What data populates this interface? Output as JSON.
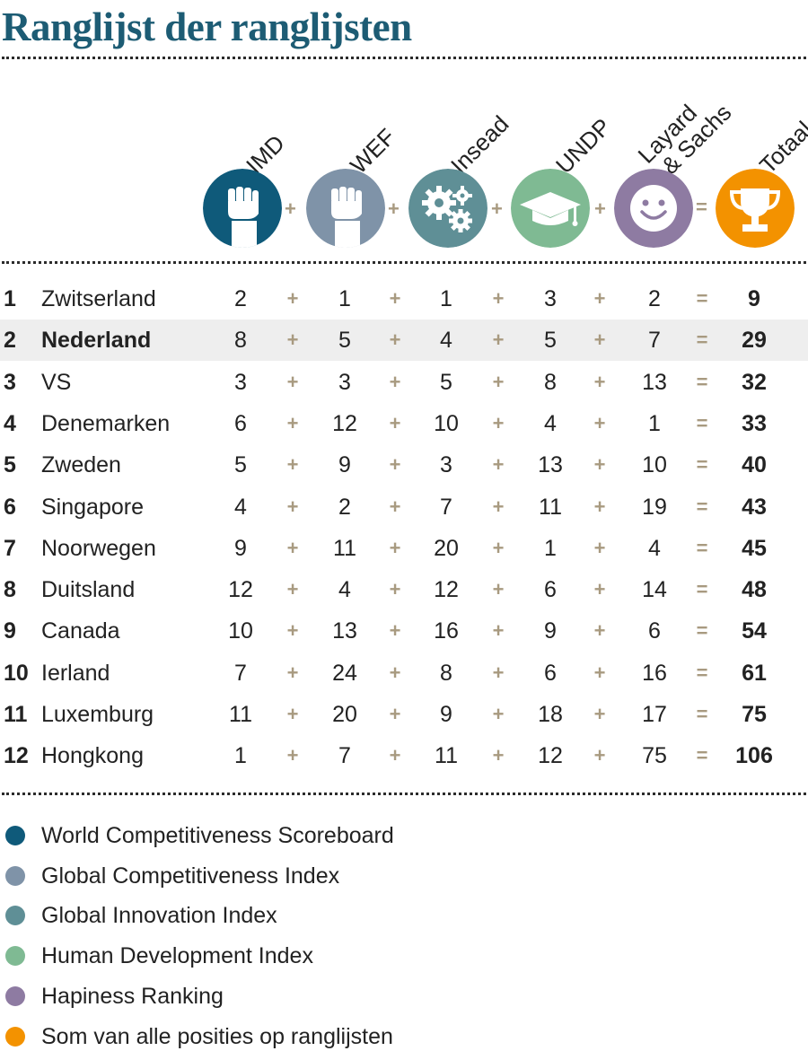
{
  "title": "Ranglijst der ranglijsten",
  "colors": {
    "imd": "#0f5a7a",
    "wef": "#7f93a8",
    "insead": "#5f8f96",
    "undp": "#7fba93",
    "happiness": "#8e7ba2",
    "total": "#f39200",
    "operator": "#a89a80"
  },
  "columns": [
    {
      "key": "imd",
      "label": "IMD",
      "icon": "fist-icon"
    },
    {
      "key": "wef",
      "label": "WEF",
      "icon": "fist-icon"
    },
    {
      "key": "insead",
      "label": "Insead",
      "icon": "gears-icon"
    },
    {
      "key": "undp",
      "label": "UNDP",
      "icon": "graduation-cap-icon"
    },
    {
      "key": "happiness",
      "label_lines": [
        "Layard",
        "& Sachs"
      ],
      "icon": "smiley-icon"
    },
    {
      "key": "total",
      "label": "Totaal",
      "icon": "trophy-icon"
    }
  ],
  "operators": {
    "plus": "+",
    "equals": "="
  },
  "chart_data": {
    "type": "table",
    "title": "Ranglijst der ranglijsten",
    "columns": [
      "IMD",
      "WEF",
      "Insead",
      "UNDP",
      "Layard & Sachs",
      "Totaal"
    ],
    "highlighted_row": "Nederland",
    "rows": [
      {
        "rank": "1",
        "country": "Zwitserland",
        "values": [
          2,
          1,
          1,
          3,
          2
        ],
        "total": 9
      },
      {
        "rank": "2",
        "country": "Nederland",
        "values": [
          8,
          5,
          4,
          5,
          7
        ],
        "total": 29
      },
      {
        "rank": "3",
        "country": "VS",
        "values": [
          3,
          3,
          5,
          8,
          13
        ],
        "total": 32
      },
      {
        "rank": "4",
        "country": "Denemarken",
        "values": [
          6,
          12,
          10,
          4,
          1
        ],
        "total": 33
      },
      {
        "rank": "5",
        "country": "Zweden",
        "values": [
          5,
          9,
          3,
          13,
          10
        ],
        "total": 40
      },
      {
        "rank": "6",
        "country": "Singapore",
        "values": [
          4,
          2,
          7,
          11,
          19
        ],
        "total": 43
      },
      {
        "rank": "7",
        "country": "Noorwegen",
        "values": [
          9,
          11,
          20,
          1,
          4
        ],
        "total": 45
      },
      {
        "rank": "8",
        "country": "Duitsland",
        "values": [
          12,
          4,
          12,
          6,
          14
        ],
        "total": 48
      },
      {
        "rank": "9",
        "country": "Canada",
        "values": [
          10,
          13,
          16,
          9,
          6
        ],
        "total": 54
      },
      {
        "rank": "10",
        "country": "Ierland",
        "values": [
          7,
          24,
          8,
          6,
          16
        ],
        "total": 61
      },
      {
        "rank": "11",
        "country": "Luxemburg",
        "values": [
          11,
          20,
          9,
          18,
          17
        ],
        "total": 75
      },
      {
        "rank": "12",
        "country": "Hongkong",
        "values": [
          1,
          7,
          11,
          12,
          75
        ],
        "total": 106
      }
    ],
    "legend": [
      {
        "label": "World Competitiveness Scoreboard",
        "color": "#0f5a7a"
      },
      {
        "label": "Global Competitiveness Index",
        "color": "#7f93a8"
      },
      {
        "label": "Global Innovation Index",
        "color": "#5f8f96"
      },
      {
        "label": "Human Development Index",
        "color": "#7fba93"
      },
      {
        "label": "Hapiness Ranking",
        "color": "#8e7ba2"
      },
      {
        "label": "Som van alle posities op ranglijsten",
        "color": "#f39200"
      }
    ]
  }
}
